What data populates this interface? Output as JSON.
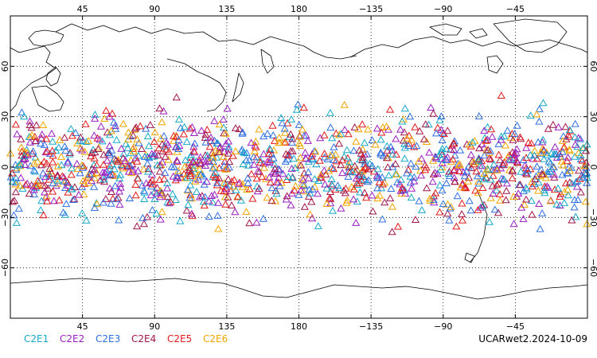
{
  "chart_data": {
    "type": "scatter",
    "title": "",
    "xlabel": "",
    "ylabel": "",
    "projection": "cylindrical equidistant, Pacific-centered",
    "xlim_longitude_east": [
      0,
      360
    ],
    "ylim_latitude": [
      -90,
      90
    ],
    "grid": true,
    "grid_style": "dotted",
    "marker": "open triangle",
    "x_ticks": [
      {
        "lon": 45,
        "label": "45"
      },
      {
        "lon": 90,
        "label": "90"
      },
      {
        "lon": 135,
        "label": "135"
      },
      {
        "lon": 180,
        "label": "180"
      },
      {
        "lon": 225,
        "label": "−135"
      },
      {
        "lon": 270,
        "label": "−90"
      },
      {
        "lon": 315,
        "label": "−45"
      }
    ],
    "y_ticks": [
      {
        "lat": 60,
        "label": "60"
      },
      {
        "lat": 30,
        "label": "30"
      },
      {
        "lat": 0,
        "label": "0"
      },
      {
        "lat": -30,
        "label": "−30"
      },
      {
        "lat": -60,
        "label": "−60"
      }
    ],
    "observation_band_latitude": [
      -45,
      45
    ],
    "series": [
      {
        "name": "C2E1",
        "color": "#17a9c9",
        "approx_count": 220
      },
      {
        "name": "C2E2",
        "color": "#9a1fc0",
        "approx_count": 220
      },
      {
        "name": "C2E3",
        "color": "#2f6fe0",
        "approx_count": 220
      },
      {
        "name": "C2E4",
        "color": "#a0154a",
        "approx_count": 220
      },
      {
        "name": "C2E5",
        "color": "#e21a1a",
        "approx_count": 220
      },
      {
        "name": "C2E6",
        "color": "#f2a600",
        "approx_count": 220
      }
    ]
  },
  "legend_position": "bottom-left",
  "footer": {
    "product_label": "UCARwet2.2024-10-09"
  },
  "colors": {
    "coastline": "#000000",
    "grid": "#000000",
    "background": "#ffffff"
  }
}
